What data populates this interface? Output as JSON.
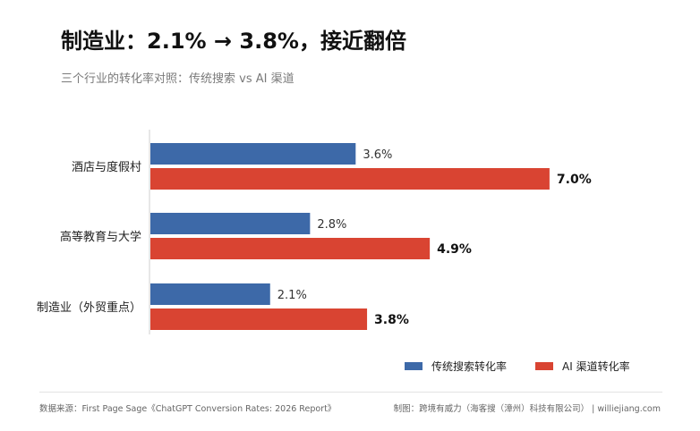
{
  "header": {
    "title": "制造业：2.1% → 3.8%，接近翻倍",
    "subtitle": "三个行业的转化率对照：传统搜索 vs AI 渠道"
  },
  "colors": {
    "traditional": "#3d69a8",
    "ai": "#d94432"
  },
  "chart_data": {
    "type": "bar",
    "orientation": "horizontal",
    "categories": [
      "酒店与度假村",
      "高等教育与大学",
      "制造业（外贸重点）"
    ],
    "series": [
      {
        "name": "传统搜索转化率",
        "values": [
          3.6,
          2.8,
          2.1
        ],
        "labels": [
          "3.6%",
          "2.8%",
          "2.1%"
        ]
      },
      {
        "name": "AI 渠道转化率",
        "values": [
          7.0,
          4.9,
          3.8
        ],
        "labels": [
          "7.0%",
          "4.9%",
          "3.8%"
        ]
      }
    ],
    "title": "制造业：2.1% → 3.8%，接近翻倍",
    "subtitle": "三个行业的转化率对照：传统搜索 vs AI 渠道",
    "xlim": [
      0,
      7.7
    ],
    "grid": false,
    "legend_position": "bottom-right"
  },
  "footer": {
    "source": "数据来源：First Page Sage《ChatGPT Conversion Rates: 2026 Report》",
    "credit": "制图：跨境有威力（海客搜（漳州）科技有限公司） | williejiang.com"
  }
}
